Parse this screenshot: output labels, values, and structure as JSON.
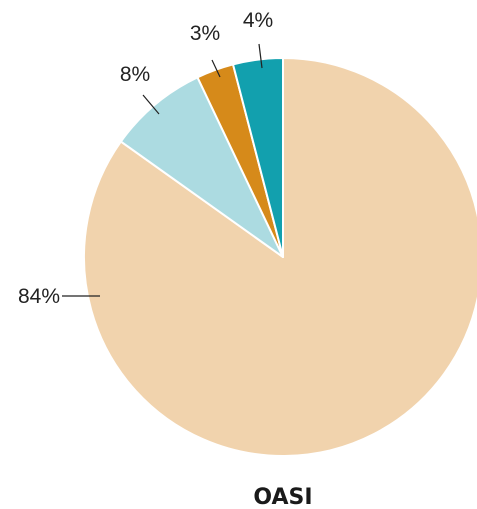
{
  "chart_data": {
    "type": "pie",
    "title": "OASI",
    "slices": [
      {
        "label": "84%",
        "value": 84,
        "color": "#f1d3ad"
      },
      {
        "label": "8%",
        "value": 8,
        "color": "#acdbe1"
      },
      {
        "label": "3%",
        "value": 3,
        "color": "#d68a1a"
      },
      {
        "label": "4%",
        "value": 4,
        "color": "#12a0ae"
      }
    ],
    "start_angle_deg": 0,
    "direction": "clockwise",
    "legend": "none"
  }
}
